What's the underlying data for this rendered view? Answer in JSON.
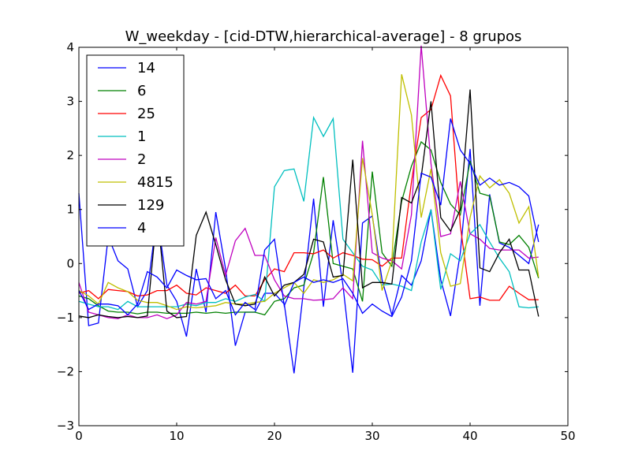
{
  "chart_data": {
    "type": "line",
    "title": "W_weekday - [cid-DTW,hierarchical-average] - 8 grupos",
    "xlabel": "",
    "ylabel": "",
    "xlim": [
      0,
      50
    ],
    "ylim": [
      -3,
      4
    ],
    "x_ticks": [
      0,
      10,
      20,
      30,
      40,
      50
    ],
    "y_ticks": [
      -3,
      -2,
      -1,
      0,
      1,
      2,
      3,
      4
    ],
    "x_tick_labels": [
      "0",
      "10",
      "20",
      "30",
      "40",
      "50"
    ],
    "y_tick_labels": [
      "−3",
      "−2",
      "−1",
      "0",
      "1",
      "2",
      "3",
      "4"
    ],
    "grid": false,
    "legend_position": "top-left",
    "x": [
      0,
      1,
      2,
      3,
      4,
      5,
      6,
      7,
      8,
      9,
      10,
      11,
      12,
      13,
      14,
      15,
      16,
      17,
      18,
      19,
      20,
      21,
      22,
      23,
      24,
      25,
      26,
      27,
      28,
      29,
      30,
      31,
      32,
      33,
      34,
      35,
      36,
      37,
      38,
      39,
      40,
      41,
      42,
      43,
      44,
      45,
      46,
      47
    ],
    "series": [
      {
        "name": "14",
        "color": "#0000ff",
        "values": [
          1.3,
          -1.15,
          -1.1,
          0.5,
          0.05,
          -0.1,
          -0.8,
          -0.5,
          0.9,
          -0.4,
          -0.7,
          -1.35,
          -0.1,
          -0.9,
          0.95,
          -0.1,
          -1.52,
          -0.9,
          -0.9,
          -0.55,
          -0.55,
          -0.75,
          -2.03,
          -0.45,
          1.2,
          -0.8,
          0.8,
          -0.4,
          -2.02,
          0.75,
          0.88,
          -0.3,
          -0.95,
          -0.22,
          -0.4,
          0.05,
          1.0,
          -0.3,
          -0.97,
          0.2,
          2.12,
          -0.78,
          1.28,
          0.38,
          0.3,
          0.15,
          0.0,
          0.72
        ]
      },
      {
        "name": "6",
        "color": "#008000",
        "values": [
          -0.6,
          -0.65,
          -0.78,
          -0.88,
          -0.9,
          -0.9,
          -0.93,
          -0.9,
          -0.9,
          -0.92,
          -0.92,
          -0.92,
          -0.9,
          -0.92,
          -0.9,
          -0.92,
          -0.9,
          -0.9,
          -0.9,
          -0.95,
          -0.7,
          -0.65,
          -0.45,
          -0.4,
          0.2,
          1.6,
          0.0,
          -0.05,
          -0.1,
          -0.7,
          1.7,
          0.2,
          -0.05,
          1.15,
          1.8,
          2.25,
          2.1,
          1.5,
          1.1,
          0.9,
          1.9,
          1.3,
          1.25,
          0.4,
          0.35,
          0.52,
          0.3,
          -0.27
        ]
      },
      {
        "name": "25",
        "color": "#ff0000",
        "values": [
          -0.55,
          -0.5,
          -0.65,
          -0.48,
          -0.5,
          -0.52,
          -0.6,
          -0.58,
          -0.5,
          -0.5,
          -0.4,
          -0.55,
          -0.58,
          -0.45,
          -0.5,
          -0.55,
          -0.4,
          -0.6,
          -0.6,
          -0.3,
          -0.1,
          -0.15,
          0.2,
          0.2,
          0.18,
          0.25,
          0.1,
          0.2,
          0.15,
          0.08,
          0.07,
          -0.05,
          0.1,
          0.1,
          1.5,
          2.7,
          2.85,
          3.48,
          3.1,
          0.7,
          -0.65,
          -0.62,
          -0.68,
          -0.68,
          -0.42,
          -0.55,
          -0.67,
          -0.67
        ]
      },
      {
        "name": "1",
        "color": "#00bfbf",
        "values": [
          -0.7,
          -0.75,
          -0.8,
          -0.8,
          -0.85,
          -0.7,
          -0.8,
          -0.8,
          -0.8,
          -0.8,
          -0.8,
          -0.75,
          -0.78,
          -0.72,
          -0.72,
          -0.65,
          -0.7,
          -0.62,
          -0.57,
          -0.7,
          1.42,
          1.72,
          1.75,
          1.15,
          2.7,
          2.35,
          2.68,
          0.45,
          0.2,
          -0.05,
          -0.12,
          -0.4,
          -0.38,
          -0.42,
          -0.5,
          0.4,
          1.0,
          -0.48,
          0.18,
          0.05,
          0.55,
          0.72,
          0.4,
          0.1,
          -0.15,
          -0.8,
          -0.82,
          -0.8
        ]
      },
      {
        "name": "2",
        "color": "#bf00bf",
        "values": [
          -0.35,
          -0.9,
          -0.95,
          -1.0,
          -1.02,
          -0.95,
          -1.0,
          -1.0,
          -0.95,
          -1.02,
          -0.95,
          -0.72,
          -0.75,
          -0.7,
          0.48,
          -0.22,
          0.42,
          0.65,
          0.15,
          0.15,
          -0.3,
          -0.6,
          -0.65,
          -0.65,
          -0.68,
          -0.67,
          -0.65,
          -0.45,
          -0.65,
          2.27,
          0.2,
          0.1,
          0.05,
          -0.1,
          0.9,
          4.03,
          1.85,
          0.5,
          0.55,
          1.52,
          0.55,
          0.45,
          0.28,
          0.25,
          0.25,
          0.25,
          0.1,
          0.12
        ]
      },
      {
        "name": "4815",
        "color": "#bfbf00",
        "values": [
          -0.5,
          -0.6,
          -0.75,
          -0.35,
          -0.45,
          -0.52,
          -0.68,
          -0.72,
          -0.72,
          -0.78,
          -0.85,
          -0.8,
          -0.82,
          -0.8,
          -0.78,
          -0.72,
          -0.75,
          -0.75,
          -0.72,
          -0.7,
          -0.55,
          -0.45,
          -0.35,
          -0.55,
          -0.3,
          -0.35,
          -0.3,
          -0.2,
          -0.32,
          1.95,
          0.9,
          -0.5,
          0.05,
          3.5,
          2.75,
          0.85,
          1.75,
          0.2,
          -0.42,
          -0.37,
          0.85,
          1.62,
          1.4,
          1.55,
          1.3,
          0.75,
          1.05,
          -0.25
        ]
      },
      {
        "name": "129",
        "color": "#000000",
        "values": [
          -0.97,
          -1.0,
          -0.95,
          -0.98,
          -1.0,
          -0.98,
          -1.0,
          -0.97,
          0.98,
          -0.88,
          -1.0,
          -0.98,
          0.52,
          0.95,
          0.35,
          -0.3,
          -0.75,
          -0.78,
          -0.75,
          -0.25,
          -0.6,
          -0.4,
          -0.35,
          -0.2,
          0.45,
          0.4,
          -0.25,
          -0.22,
          1.92,
          -0.45,
          -0.35,
          -0.35,
          -0.38,
          1.22,
          1.12,
          1.6,
          3.0,
          0.85,
          0.6,
          1.0,
          3.22,
          -0.08,
          -0.15,
          0.2,
          0.45,
          -0.12,
          -0.12,
          -0.98
        ]
      },
      {
        "name": "4",
        "color": "#0000ff",
        "values": [
          -0.5,
          -0.85,
          -0.75,
          -0.75,
          -0.78,
          -0.95,
          -0.75,
          -0.15,
          -0.25,
          -0.45,
          -0.12,
          -0.22,
          -0.3,
          -0.28,
          -0.65,
          -0.5,
          -0.95,
          -0.72,
          -0.85,
          0.25,
          0.45,
          -0.78,
          -0.35,
          -0.25,
          -0.35,
          -0.3,
          -0.35,
          -0.28,
          -0.55,
          -0.92,
          -0.75,
          -0.88,
          -0.98,
          -0.62,
          0.05,
          1.67,
          1.6,
          1.08,
          2.68,
          2.1,
          1.85,
          1.45,
          1.58,
          1.45,
          1.5,
          1.42,
          1.25,
          0.4
        ]
      }
    ]
  }
}
